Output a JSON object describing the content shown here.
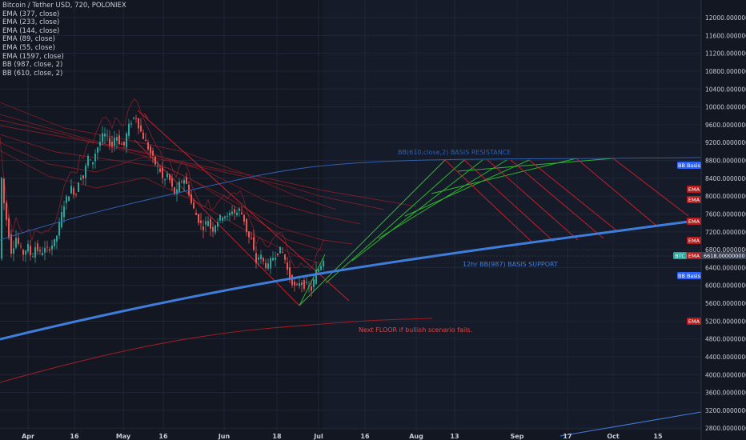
{
  "chart_data": {
    "type": "candlestick",
    "title": "Bitcoin / Tether USD, 720, POLONIEX",
    "indicators": [
      "EMA (377, close)",
      "EMA (233, close)",
      "EMA (144, close)",
      "EMA (89, close)",
      "EMA (55, close)",
      "EMA (1597, close)",
      "BB (987, close, 2)",
      "BB (610, close, 2)"
    ],
    "y_ticks": [
      "12000.00000000",
      "11600.00000000",
      "11200.00000000",
      "10800.00000000",
      "10400.00000000",
      "10000.00000000",
      "9600.00000000",
      "9200.00000000",
      "8800.00000000",
      "8400.00000000",
      "8000.00000000",
      "7600.00000000",
      "7200.00000000",
      "6800.00000000",
      "6400.00000000",
      "6000.00000000",
      "5600.00000000",
      "5200.00000000",
      "4800.00000000",
      "4400.00000000",
      "4000.00000000",
      "3600.00000000",
      "3200.00000000",
      "2800.00000000"
    ],
    "x_ticks": [
      "Apr",
      "16",
      "May",
      "16",
      "Jun",
      "18",
      "Jul",
      "16",
      "Aug",
      "13",
      "Sep",
      "17",
      "Oct",
      "15"
    ],
    "ylim": [
      2750,
      12180
    ],
    "price_points": [
      [
        0,
        8900
      ],
      [
        5,
        7900
      ],
      [
        10,
        7300
      ],
      [
        15,
        6700
      ],
      [
        20,
        7100
      ],
      [
        26,
        6800
      ],
      [
        30,
        6700
      ],
      [
        35,
        6900
      ],
      [
        40,
        6600
      ],
      [
        45,
        6900
      ],
      [
        50,
        6700
      ],
      [
        55,
        6800
      ],
      [
        60,
        6800
      ],
      [
        65,
        6900
      ],
      [
        70,
        7000
      ],
      [
        75,
        7400
      ],
      [
        80,
        7800
      ],
      [
        85,
        8000
      ],
      [
        90,
        8200
      ],
      [
        95,
        8000
      ],
      [
        100,
        8500
      ],
      [
        105,
        8400
      ],
      [
        110,
        8900
      ],
      [
        115,
        8700
      ],
      [
        120,
        9000
      ],
      [
        125,
        9200
      ],
      [
        130,
        9400
      ],
      [
        135,
        9300
      ],
      [
        140,
        9100
      ],
      [
        145,
        9400
      ],
      [
        150,
        9200
      ],
      [
        155,
        9100
      ],
      [
        160,
        9500
      ],
      [
        165,
        9700
      ],
      [
        170,
        9800
      ],
      [
        175,
        9500
      ],
      [
        180,
        9300
      ],
      [
        185,
        9100
      ],
      [
        190,
        8900
      ],
      [
        195,
        8700
      ],
      [
        200,
        8600
      ],
      [
        205,
        8300
      ],
      [
        210,
        8500
      ],
      [
        215,
        8200
      ],
      [
        220,
        8000
      ],
      [
        225,
        8300
      ],
      [
        230,
        8400
      ],
      [
        235,
        8200
      ],
      [
        240,
        7800
      ],
      [
        245,
        7600
      ],
      [
        250,
        7400
      ],
      [
        255,
        7300
      ],
      [
        260,
        7500
      ],
      [
        265,
        7200
      ],
      [
        270,
        7400
      ],
      [
        275,
        7500
      ],
      [
        280,
        7600
      ],
      [
        285,
        7500
      ],
      [
        290,
        7700
      ],
      [
        295,
        7600
      ],
      [
        300,
        7700
      ],
      [
        305,
        7500
      ],
      [
        310,
        7100
      ],
      [
        315,
        7000
      ],
      [
        320,
        6500
      ],
      [
        325,
        6700
      ],
      [
        330,
        6500
      ],
      [
        335,
        6400
      ],
      [
        340,
        6600
      ],
      [
        345,
        6700
      ],
      [
        350,
        6800
      ],
      [
        355,
        6700
      ],
      [
        360,
        6300
      ],
      [
        365,
        6100
      ],
      [
        370,
        5900
      ],
      [
        375,
        6100
      ],
      [
        380,
        6000
      ],
      [
        385,
        6000
      ],
      [
        390,
        5900
      ],
      [
        395,
        6300
      ],
      [
        400,
        6400
      ],
      [
        404,
        6600
      ]
    ],
    "annotations": {
      "resistance": "BB(610,close,2) BASIS RESISTANCE",
      "support": "12hr BB(987) BASIS SUPPORT",
      "floor": "Next FLOOR if bullish scenario fails."
    },
    "badges": {
      "bb_basis": "BB Basis",
      "ema": "EMA",
      "btc": "BTC",
      "price": "6618.00000000"
    },
    "colors": {
      "background": "#131722",
      "support": "#3f7ddb",
      "resistance": "#2f5fae",
      "green_channel": "#2fb52f",
      "red_channel": "#c81e2a",
      "floor_text": "#e04646",
      "up": "#26a69a",
      "down": "#ef5350"
    }
  }
}
